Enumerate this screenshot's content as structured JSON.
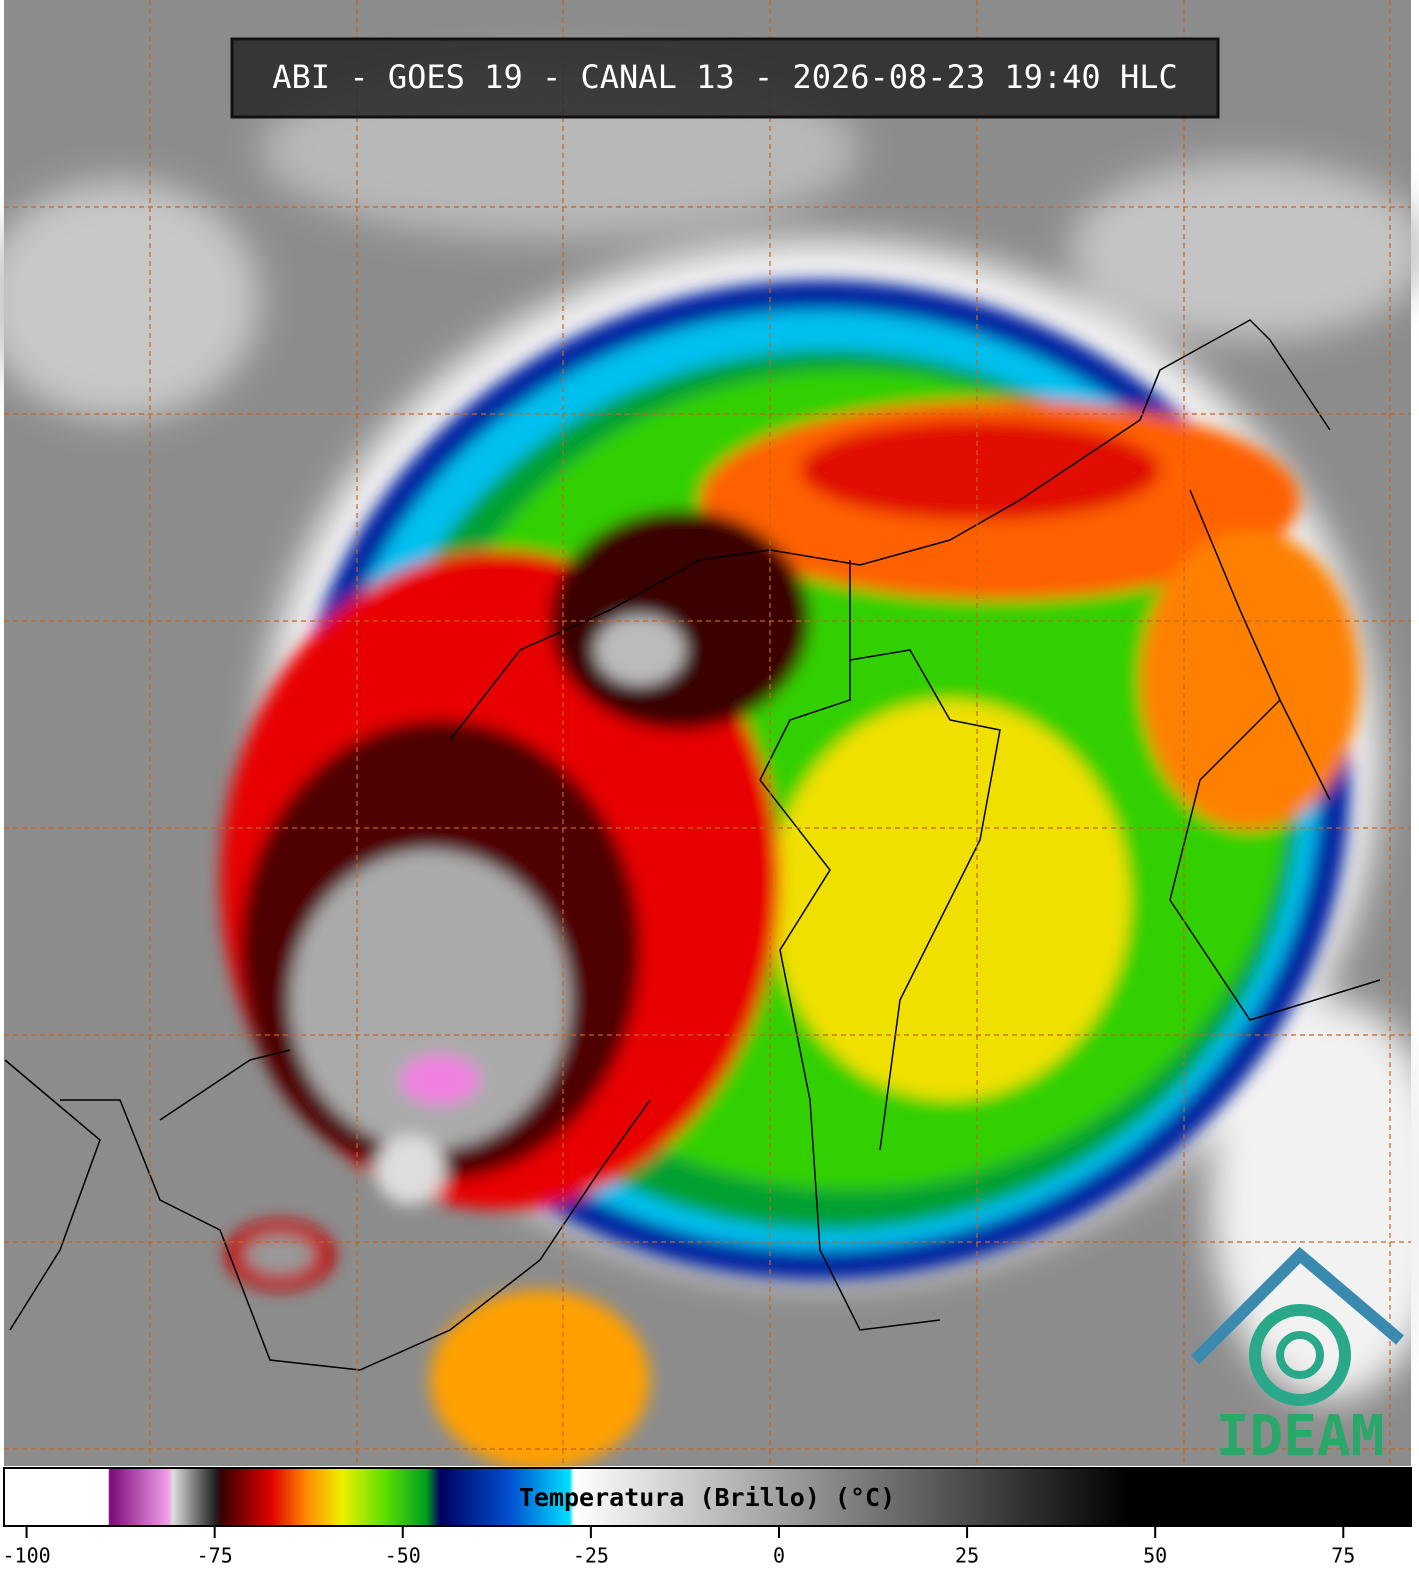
{
  "title": "ABI - GOES 19 - CANAL 13 - 2026-08-23 19:40 HLC",
  "colorbar": {
    "label": "Temperatura (Brillo) (°C)",
    "lim": [
      -103,
      84
    ],
    "ticks": [
      -100,
      -75,
      -50,
      -25,
      0,
      25,
      50,
      75
    ]
  },
  "logo": "IDEAM"
}
